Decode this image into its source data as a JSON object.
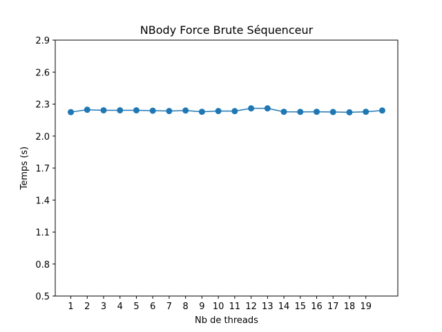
{
  "chart_data": {
    "type": "line",
    "title": "NBody Force Brute Séquenceur",
    "xlabel": "Nb de threads",
    "ylabel": "Temps (s)",
    "x": [
      1,
      2,
      3,
      4,
      5,
      6,
      7,
      8,
      9,
      10,
      11,
      12,
      13,
      14,
      15,
      16,
      17,
      18,
      19,
      20
    ],
    "x_ticks": [
      1,
      2,
      3,
      4,
      5,
      6,
      7,
      8,
      9,
      10,
      11,
      12,
      13,
      14,
      15,
      16,
      17,
      18,
      19
    ],
    "xlim": [
      0.05,
      20.95
    ],
    "y_ticks": [
      "0.5",
      "0.8",
      "1.1",
      "1.4",
      "1.7",
      "2.0",
      "2.3",
      "2.6",
      "2.9"
    ],
    "ylim": [
      0.5,
      2.9
    ],
    "series": [
      {
        "values": [
          2.225,
          2.247,
          2.242,
          2.242,
          2.242,
          2.238,
          2.235,
          2.24,
          2.228,
          2.235,
          2.234,
          2.26,
          2.26,
          2.228,
          2.227,
          2.228,
          2.226,
          2.223,
          2.228,
          2.24
        ],
        "color": "#1f77b4",
        "marker": "circle"
      }
    ],
    "grid": false,
    "legend": "none"
  }
}
